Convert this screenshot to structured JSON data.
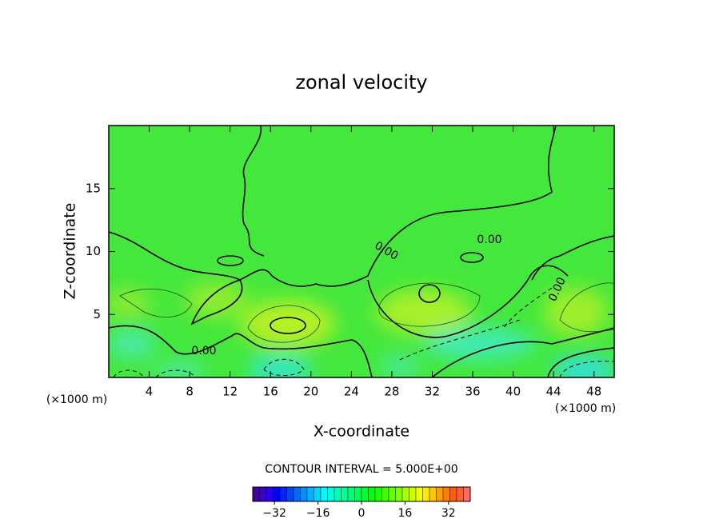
{
  "chart_data": {
    "type": "contour",
    "title": "zonal velocity",
    "x_label": "X-coordinate",
    "y_label": "Z-coordinate",
    "x_unit": "(×1000 m)",
    "y_unit": "(×1000 m)",
    "xlim": [
      0,
      50
    ],
    "ylim": [
      0,
      20
    ],
    "xticks": [
      4,
      8,
      12,
      16,
      20,
      24,
      28,
      32,
      36,
      40,
      44,
      48
    ],
    "yticks": [
      5,
      10,
      15
    ],
    "contour_labels": [
      "0.00",
      "0.00",
      "0.00",
      "0.00"
    ],
    "contour_interval_text": "CONTOUR INTERVAL = 5.000E+00",
    "colorbar_lim": [
      -40,
      40
    ],
    "colorbar_ticks": [
      {
        "value": -32,
        "label": "−32"
      },
      {
        "value": -16,
        "label": "−16"
      },
      0,
      16,
      32
    ]
  }
}
